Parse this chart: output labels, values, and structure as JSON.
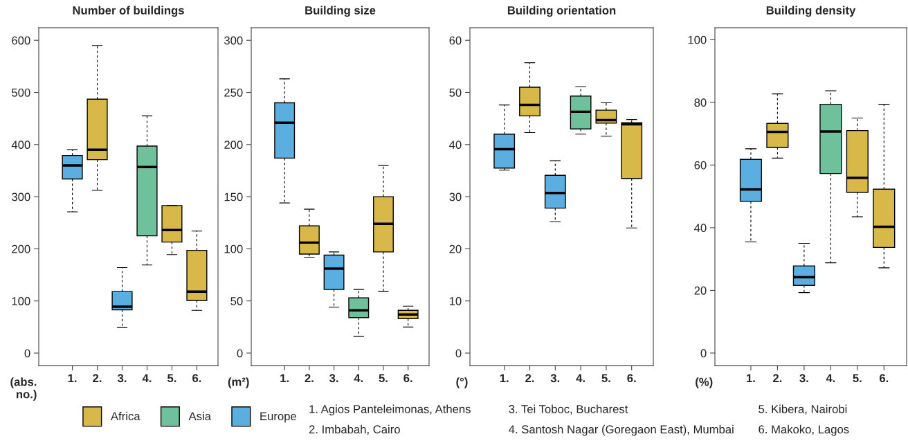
{
  "chart_data": [
    {
      "type": "box",
      "title": "Number of buildings",
      "ylabel": "(abs.\nno.)",
      "categories": [
        "1.",
        "2.",
        "3.",
        "4.",
        "5.",
        "6."
      ],
      "ylim": [
        -24,
        624
      ],
      "yticks": [
        0,
        100,
        200,
        300,
        400,
        500,
        600
      ],
      "grid": false,
      "legend": "bottom",
      "series": [
        {
          "name": "Africa",
          "color": "#d9b84a",
          "boxes": [
            null,
            {
              "low": 312,
              "q1": 371,
              "median": 390,
              "q3": 487,
              "high": 590
            },
            null,
            null,
            {
              "low": 189,
              "q1": 213,
              "median": 236,
              "q3": 283,
              "high": 283
            },
            {
              "low": 82,
              "q1": 101,
              "median": 118,
              "q3": 197,
              "high": 234
            }
          ]
        },
        {
          "name": "Asia",
          "color": "#6fc19b",
          "boxes": [
            null,
            null,
            null,
            {
              "low": 169,
              "q1": 225,
              "median": 357,
              "q3": 397,
              "high": 455
            },
            null,
            null
          ]
        },
        {
          "name": "Europe",
          "color": "#5aafe0",
          "boxes": [
            {
              "low": 271,
              "q1": 334,
              "median": 360,
              "q3": 379,
              "high": 390
            },
            null,
            {
              "low": 49,
              "q1": 83,
              "median": 89,
              "q3": 118,
              "high": 164
            },
            null,
            null,
            null
          ]
        }
      ],
      "annotations": [
        "1. Agios Panteleimonas, Athens",
        "2. Imbabah, Cairo",
        "3. Tei Toboc, Bucharest",
        "4. Santosh Nagar (Goregaon East), Mumbai",
        "5. Kibera, Nairobi",
        "6. Makoko, Lagos"
      ]
    },
    {
      "type": "box",
      "title": "Building size",
      "ylabel": "(m²)",
      "categories": [
        "1.",
        "2.",
        "3.",
        "4.",
        "5.",
        "6."
      ],
      "ylim": [
        -12,
        312
      ],
      "yticks": [
        0,
        50,
        100,
        150,
        200,
        250,
        300
      ],
      "grid": false,
      "series": [
        {
          "color": "#d9b84a",
          "boxes": [
            null,
            {
              "low": 92,
              "q1": 95,
              "median": 106,
              "q3": 122,
              "high": 138
            },
            null,
            null,
            {
              "low": 59,
              "q1": 97,
              "median": 124,
              "q3": 150,
              "high": 180
            },
            {
              "low": 25,
              "q1": 33,
              "median": 37,
              "q3": 41,
              "high": 45
            }
          ]
        },
        {
          "color": "#6fc19b",
          "boxes": [
            null,
            null,
            null,
            {
              "low": 16,
              "q1": 34,
              "median": 41,
              "q3": 53,
              "high": 61
            },
            null,
            null
          ]
        },
        {
          "color": "#5aafe0",
          "boxes": [
            {
              "low": 144,
              "q1": 187,
              "median": 221,
              "q3": 240,
              "high": 263
            },
            null,
            {
              "low": 44,
              "q1": 61,
              "median": 81,
              "q3": 94,
              "high": 97
            },
            null,
            null,
            null
          ]
        }
      ]
    },
    {
      "type": "box",
      "title": "Building orientation",
      "ylabel": "(°)",
      "categories": [
        "1.",
        "2.",
        "3.",
        "4.",
        "5.",
        "6."
      ],
      "ylim": [
        -2.4,
        62.4
      ],
      "yticks": [
        0,
        10,
        20,
        30,
        40,
        50,
        60
      ],
      "grid": false,
      "series": [
        {
          "color": "#d9b84a",
          "boxes": [
            null,
            {
              "low": 42.3,
              "q1": 45.5,
              "median": 47.6,
              "q3": 51,
              "high": 55.7
            },
            null,
            null,
            {
              "low": 41.6,
              "q1": 44.1,
              "median": 44.7,
              "q3": 46.6,
              "high": 48
            },
            {
              "low": 24,
              "q1": 33.5,
              "median": 43.9,
              "q3": 44.2,
              "high": 44.8
            }
          ]
        },
        {
          "color": "#6fc19b",
          "boxes": [
            null,
            null,
            null,
            {
              "low": 42,
              "q1": 43,
              "median": 46.3,
              "q3": 49.3,
              "high": 51.1
            },
            null,
            null
          ]
        },
        {
          "color": "#5aafe0",
          "boxes": [
            {
              "low": 35.1,
              "q1": 35.5,
              "median": 39.1,
              "q3": 42,
              "high": 47.6
            },
            null,
            {
              "low": 25.2,
              "q1": 27.8,
              "median": 30.7,
              "q3": 34.1,
              "high": 36.9
            },
            null,
            null,
            null
          ]
        }
      ]
    },
    {
      "type": "box",
      "title": "Building density",
      "ylabel": "(%)",
      "categories": [
        "1.",
        "2.",
        "3.",
        "4.",
        "5.",
        "6."
      ],
      "ylim": [
        -4,
        103.8
      ],
      "yticks": [
        0,
        20,
        40,
        60,
        80,
        100
      ],
      "grid": false,
      "series": [
        {
          "color": "#d9b84a",
          "boxes": [
            null,
            {
              "low": 62.2,
              "q1": 65.6,
              "median": 70.6,
              "q3": 73.3,
              "high": 82.7
            },
            null,
            null,
            {
              "low": 43.5,
              "q1": 51.3,
              "median": 55.9,
              "q3": 71,
              "high": 75
            },
            {
              "low": 27.2,
              "q1": 33.7,
              "median": 40.3,
              "q3": 52.3,
              "high": 79.4
            }
          ]
        },
        {
          "color": "#6fc19b",
          "boxes": [
            null,
            null,
            null,
            {
              "low": 28.8,
              "q1": 57.3,
              "median": 70.7,
              "q3": 79.4,
              "high": 83.7
            },
            null,
            null
          ]
        },
        {
          "color": "#5aafe0",
          "boxes": [
            {
              "low": 35.5,
              "q1": 48.4,
              "median": 52.2,
              "q3": 61.8,
              "high": 65.2
            },
            null,
            {
              "low": 19.3,
              "q1": 21.6,
              "median": 24.2,
              "q3": 27.8,
              "high": 35
            },
            null,
            null,
            null
          ]
        }
      ]
    }
  ]
}
